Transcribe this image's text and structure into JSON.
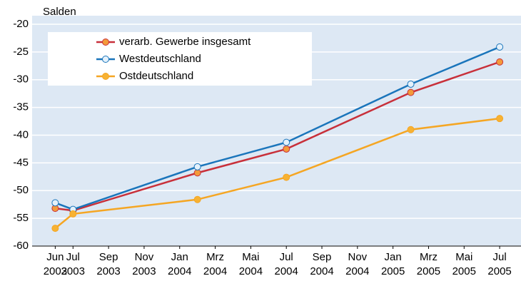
{
  "chart_data": {
    "type": "line",
    "ylabel": "Salden",
    "xlim": [
      3.7,
      31.2
    ],
    "xticks": [
      {
        "value": 5,
        "label": "Jun 2003"
      },
      {
        "value": 6,
        "label": "Jul 2003"
      },
      {
        "value": 8,
        "label": "Sep 2003"
      },
      {
        "value": 10,
        "label": "Nov 2003"
      },
      {
        "value": 12,
        "label": "Jan 2004"
      },
      {
        "value": 14,
        "label": "Mrz 2004"
      },
      {
        "value": 16,
        "label": "Mai 2004"
      },
      {
        "value": 18,
        "label": "Jul 2004"
      },
      {
        "value": 20,
        "label": "Sep 2004"
      },
      {
        "value": 22,
        "label": "Nov 2004"
      },
      {
        "value": 24,
        "label": "Jan 2005"
      },
      {
        "value": 26,
        "label": "Mrz 2005"
      },
      {
        "value": 28,
        "label": "Mai 2005"
      },
      {
        "value": 30,
        "label": "Jul 2005"
      }
    ],
    "ylim": [
      -60,
      -20
    ],
    "yticks": [
      -60,
      -55,
      -50,
      -45,
      -40,
      -35,
      -30,
      -25,
      -20
    ],
    "grid": true,
    "legend": "upper left",
    "x": [
      5,
      6,
      13,
      18,
      25,
      30
    ],
    "series": [
      {
        "name": "verarb. Gewerbe insgesamt",
        "color": "#c8303a",
        "marker_color": "#f39a3a",
        "values": [
          -53.2,
          -53.6,
          -46.8,
          -42.5,
          -32.3,
          -26.8
        ]
      },
      {
        "name": "Westdeutschland",
        "color": "#1a75bb",
        "marker_color": "#e4f1fb",
        "values": [
          -52.2,
          -53.4,
          -45.7,
          -41.3,
          -30.8,
          -24.1
        ]
      },
      {
        "name": "Ostdeutschland",
        "color": "#f5a623",
        "marker_color": "#f7b233",
        "values": [
          -56.8,
          -54.2,
          -51.6,
          -47.6,
          -39.0,
          -37.0
        ]
      }
    ]
  }
}
